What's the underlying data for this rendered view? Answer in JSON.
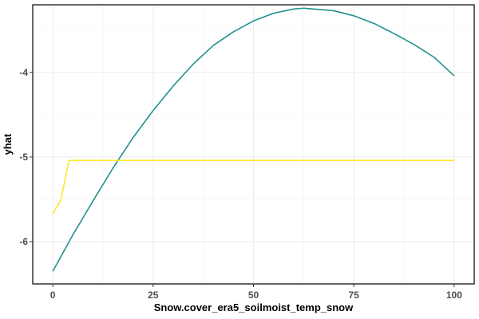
{
  "chart_data": {
    "type": "line",
    "title": "",
    "xlabel": "Snow.cover_era5_soilmoist_temp_snow",
    "ylabel": "yhat",
    "xlim": [
      -5,
      105
    ],
    "ylim": [
      -6.5,
      -3.2
    ],
    "x_ticks": [
      0,
      25,
      50,
      75,
      100
    ],
    "x_tick_labels": [
      "0",
      "25",
      "50",
      "75",
      "100"
    ],
    "y_ticks": [
      -6,
      -5,
      -4
    ],
    "y_tick_labels": [
      "-6",
      "-5",
      "-4"
    ],
    "grid": true,
    "legend": "none",
    "series": [
      {
        "color": "#21918c",
        "x": [
          0,
          5,
          10,
          15,
          20,
          25,
          30,
          35,
          40,
          45,
          50,
          55,
          60,
          62.5,
          65,
          70,
          75,
          80,
          85,
          90,
          95,
          100
        ],
        "y": [
          -6.35,
          -5.92,
          -5.52,
          -5.13,
          -4.77,
          -4.45,
          -4.16,
          -3.9,
          -3.68,
          -3.52,
          -3.39,
          -3.3,
          -3.25,
          -3.24,
          -3.25,
          -3.27,
          -3.33,
          -3.42,
          -3.54,
          -3.67,
          -3.82,
          -4.04
        ]
      },
      {
        "color": "#fde725",
        "x": [
          0,
          2,
          4,
          10,
          25,
          50,
          75,
          100
        ],
        "y": [
          -5.67,
          -5.51,
          -5.04,
          -5.04,
          -5.04,
          -5.04,
          -5.04,
          -5.04
        ]
      }
    ]
  }
}
